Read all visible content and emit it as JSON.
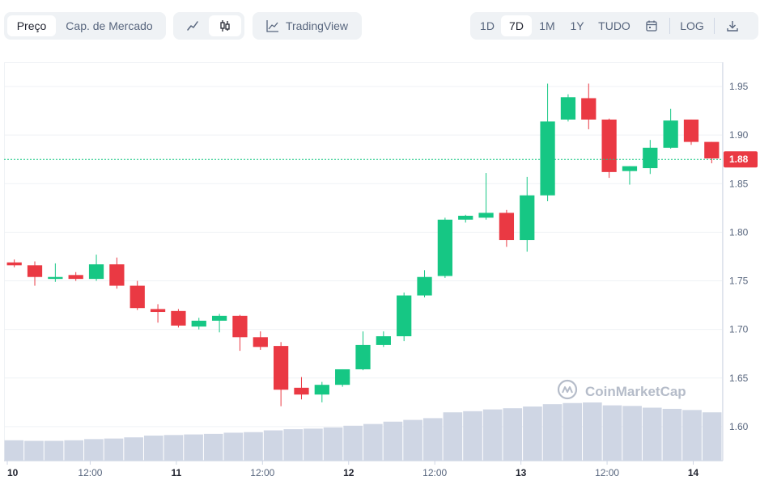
{
  "toolbar": {
    "metric_tabs": [
      {
        "label": "Preço",
        "active": true
      },
      {
        "label": "Cap. de Mercado",
        "active": false
      }
    ],
    "chart_type": {
      "line_icon": "line-chart-icon",
      "candle_icon": "candlestick-icon",
      "active": "candle"
    },
    "tradingview_label": "TradingView",
    "ranges": [
      {
        "label": "1D",
        "active": false
      },
      {
        "label": "7D",
        "active": true
      },
      {
        "label": "1M",
        "active": false
      },
      {
        "label": "1Y",
        "active": false
      },
      {
        "label": "TUDO",
        "active": false
      }
    ],
    "calendar_icon": "calendar-icon",
    "log_label": "LOG",
    "download_icon": "download-icon"
  },
  "watermark": "CoinMarketCap",
  "current_price_label": "1.88",
  "colors": {
    "up": "#16c784",
    "down": "#ea3943",
    "volume": "#cfd6e4",
    "grid": "#eff2f5",
    "price_line": "#16c784",
    "price_tag": "#ea3943"
  },
  "chart_data": {
    "type": "candlestick",
    "y_axis": {
      "ticks": [
        "1.95",
        "1.90",
        "1.85",
        "1.80",
        "1.75",
        "1.70",
        "1.65",
        "1.60"
      ],
      "ylim": [
        1.565,
        1.975
      ]
    },
    "x_axis": {
      "ticks": [
        "10",
        "12:00",
        "11",
        "12:00",
        "12",
        "12:00",
        "13",
        "12:00",
        "14"
      ],
      "bold": [
        "10",
        "11",
        "12",
        "13",
        "14"
      ]
    },
    "current_price": 1.875,
    "candles": [
      {
        "o": 1.769,
        "h": 1.772,
        "l": 1.764,
        "c": 1.766
      },
      {
        "o": 1.766,
        "h": 1.77,
        "l": 1.745,
        "c": 1.754
      },
      {
        "o": 1.752,
        "h": 1.768,
        "l": 1.749,
        "c": 1.754
      },
      {
        "o": 1.756,
        "h": 1.759,
        "l": 1.75,
        "c": 1.752
      },
      {
        "o": 1.752,
        "h": 1.777,
        "l": 1.75,
        "c": 1.767
      },
      {
        "o": 1.767,
        "h": 1.774,
        "l": 1.742,
        "c": 1.745
      },
      {
        "o": 1.745,
        "h": 1.75,
        "l": 1.72,
        "c": 1.722
      },
      {
        "o": 1.721,
        "h": 1.726,
        "l": 1.707,
        "c": 1.718
      },
      {
        "o": 1.719,
        "h": 1.721,
        "l": 1.702,
        "c": 1.704
      },
      {
        "o": 1.703,
        "h": 1.712,
        "l": 1.7,
        "c": 1.709
      },
      {
        "o": 1.709,
        "h": 1.716,
        "l": 1.697,
        "c": 1.714
      },
      {
        "o": 1.714,
        "h": 1.715,
        "l": 1.678,
        "c": 1.692
      },
      {
        "o": 1.692,
        "h": 1.698,
        "l": 1.679,
        "c": 1.682
      },
      {
        "o": 1.683,
        "h": 1.687,
        "l": 1.621,
        "c": 1.638
      },
      {
        "o": 1.64,
        "h": 1.651,
        "l": 1.628,
        "c": 1.633
      },
      {
        "o": 1.633,
        "h": 1.646,
        "l": 1.625,
        "c": 1.643
      },
      {
        "o": 1.643,
        "h": 1.659,
        "l": 1.641,
        "c": 1.659
      },
      {
        "o": 1.659,
        "h": 1.698,
        "l": 1.658,
        "c": 1.684
      },
      {
        "o": 1.684,
        "h": 1.698,
        "l": 1.682,
        "c": 1.693
      },
      {
        "o": 1.693,
        "h": 1.738,
        "l": 1.688,
        "c": 1.735
      },
      {
        "o": 1.735,
        "h": 1.761,
        "l": 1.733,
        "c": 1.754
      },
      {
        "o": 1.755,
        "h": 1.815,
        "l": 1.753,
        "c": 1.813
      },
      {
        "o": 1.813,
        "h": 1.818,
        "l": 1.81,
        "c": 1.817
      },
      {
        "o": 1.815,
        "h": 1.861,
        "l": 1.813,
        "c": 1.82
      },
      {
        "o": 1.82,
        "h": 1.823,
        "l": 1.785,
        "c": 1.792
      },
      {
        "o": 1.792,
        "h": 1.857,
        "l": 1.78,
        "c": 1.838
      },
      {
        "o": 1.838,
        "h": 1.953,
        "l": 1.832,
        "c": 1.914
      },
      {
        "o": 1.916,
        "h": 1.942,
        "l": 1.914,
        "c": 1.939
      },
      {
        "o": 1.938,
        "h": 1.953,
        "l": 1.906,
        "c": 1.916
      },
      {
        "o": 1.916,
        "h": 1.917,
        "l": 1.856,
        "c": 1.862
      },
      {
        "o": 1.863,
        "h": 1.868,
        "l": 1.849,
        "c": 1.868
      },
      {
        "o": 1.866,
        "h": 1.895,
        "l": 1.86,
        "c": 1.887
      },
      {
        "o": 1.887,
        "h": 1.927,
        "l": 1.886,
        "c": 1.915
      },
      {
        "o": 1.916,
        "h": 1.916,
        "l": 1.89,
        "c": 1.893
      },
      {
        "o": 1.893,
        "h": 1.893,
        "l": 1.871,
        "c": 1.876
      }
    ],
    "volume_relative": [
      0.35,
      0.34,
      0.34,
      0.35,
      0.37,
      0.38,
      0.4,
      0.43,
      0.44,
      0.45,
      0.46,
      0.48,
      0.49,
      0.52,
      0.54,
      0.55,
      0.57,
      0.6,
      0.63,
      0.67,
      0.7,
      0.73,
      0.83,
      0.85,
      0.88,
      0.9,
      0.93,
      0.97,
      0.99,
      1.0,
      0.95,
      0.94,
      0.91,
      0.89,
      0.87,
      0.83
    ]
  }
}
